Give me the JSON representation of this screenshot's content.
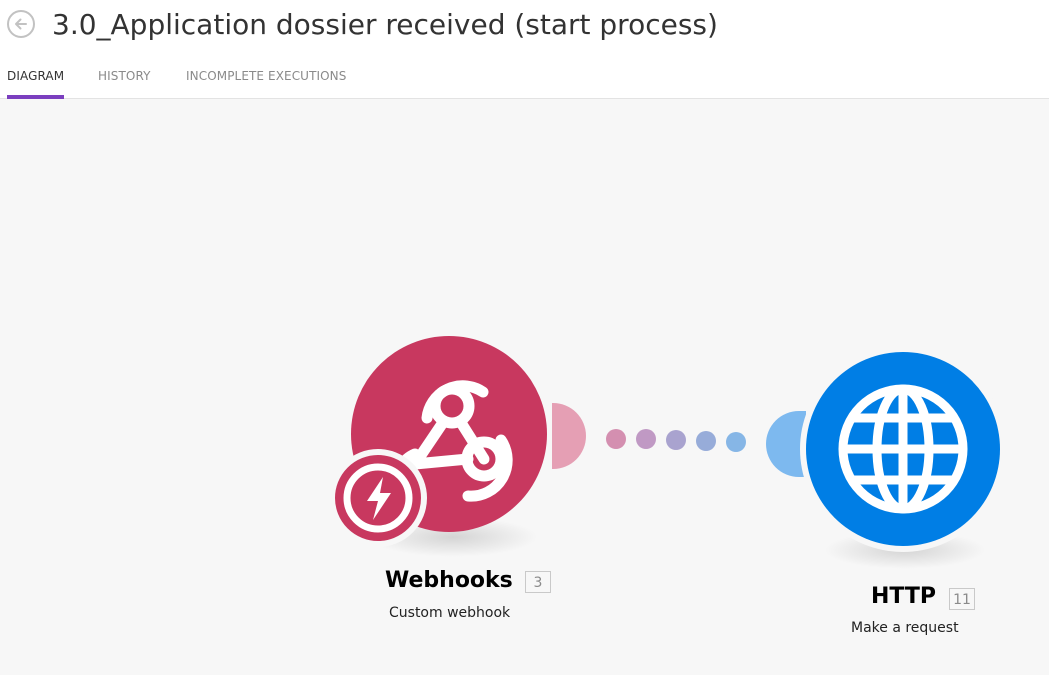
{
  "header": {
    "title": "3.0_Application dossier received (start process)",
    "back_icon": "arrow-left-circle-icon"
  },
  "tabs": [
    {
      "label": "DIAGRAM",
      "active": true
    },
    {
      "label": "HISTORY",
      "active": false
    },
    {
      "label": "INCOMPLETE EXECUTIONS",
      "active": false
    }
  ],
  "modules": [
    {
      "name": "Webhooks",
      "count": "3",
      "action": "Custom webhook",
      "color": "#c8385f",
      "icon": "webhook-icon",
      "trigger_icon": "lightning-bolt-icon"
    },
    {
      "name": "HTTP",
      "count": "11",
      "action": "Make a request",
      "color": "#007ee5",
      "icon": "globe-icon"
    }
  ],
  "colors": {
    "accent": "#7b3fbf",
    "webhook": "#c8385f",
    "http": "#007ee5",
    "connector_left": "#e59fb4",
    "connector_right": "#7db9ef"
  }
}
